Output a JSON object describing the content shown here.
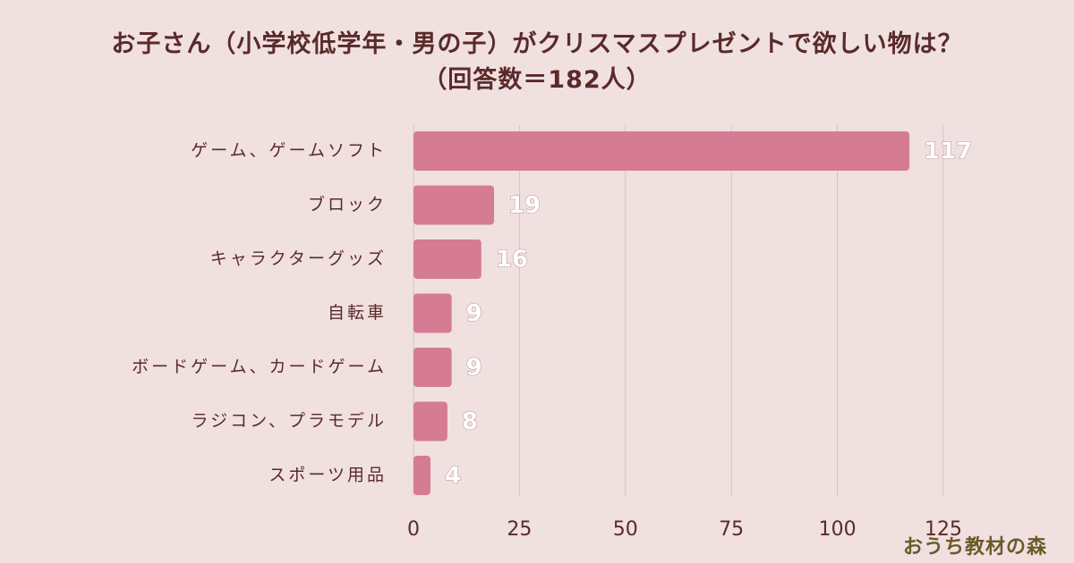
{
  "title_line1": "お子さん（小学校低学年・男の子）がクリスマスプレゼントで欲しい物は？",
  "title_line2": "（回答数＝182人）",
  "logo": "おうち教材の森",
  "colors": {
    "bar": "#d57b93",
    "grid": "#d6c3c3",
    "text": "#5a2a2a"
  },
  "chart_data": {
    "type": "bar",
    "orientation": "horizontal",
    "title": "お子さん（小学校低学年・男の子）がクリスマスプレゼントで欲しい物は？（回答数＝182人）",
    "categories": [
      "ゲーム、ゲームソフト",
      "ブロック",
      "キャラクターグッズ",
      "自転車",
      "ボードゲーム、カードゲーム",
      "ラジコン、プラモデル",
      "スポーツ用品"
    ],
    "values": [
      117,
      19,
      16,
      9,
      9,
      8,
      4
    ],
    "xlim": [
      0,
      125
    ],
    "xticks": [
      0,
      25,
      50,
      75,
      100,
      125
    ],
    "grid": true,
    "xlabel": "",
    "ylabel": ""
  }
}
